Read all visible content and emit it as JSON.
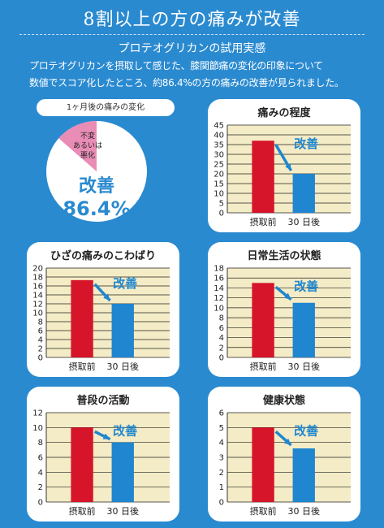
{
  "header": {
    "title": "8割以上の方の痛みが改善",
    "subtitle": "プロテオグリカンの試用実感",
    "description_lines": [
      "プロテオグリカンを摂取して感じた、膝関節痛の変化の印象について",
      "数値でスコア化したところ、約86.4%の方の痛みの改善が見られました。"
    ]
  },
  "colors": {
    "background": "#2a8ad0",
    "before_bar": "#d6142a",
    "after_bar": "#1f86cf",
    "pie_improved": "#ffffff",
    "pie_unchanged": "#e98cb6",
    "plot_bg": "#f4ecc6",
    "arrow": "#1f86cf"
  },
  "pie": {
    "label": "1ヶ月後の痛みの変化",
    "small_label_lines": [
      "不変",
      "あるいは",
      "悪化"
    ],
    "big_label": "改善",
    "big_value": "86.4%"
  },
  "chart_data": [
    {
      "type": "pie",
      "title": "1ヶ月後の痛みの変化",
      "labels": [
        "改善",
        "不変あるいは悪化"
      ],
      "values": [
        86.4,
        13.6
      ]
    },
    {
      "type": "bar",
      "title": "痛みの程度",
      "categories": [
        "摂取前",
        "30 日後"
      ],
      "values": [
        37,
        20
      ],
      "ylim": [
        0,
        45
      ],
      "ticks": [
        0,
        5,
        10,
        15,
        20,
        25,
        30,
        35,
        40,
        45
      ],
      "annotation": "改善",
      "grid": true
    },
    {
      "type": "bar",
      "title": "ひざの痛みのこわばり",
      "categories": [
        "摂取前",
        "30 日後"
      ],
      "values": [
        17.3,
        12
      ],
      "ylim": [
        0,
        20
      ],
      "ticks": [
        0,
        2,
        4,
        6,
        8,
        10,
        12,
        14,
        16,
        18,
        20
      ],
      "annotation": "改善",
      "grid": true
    },
    {
      "type": "bar",
      "title": "日常生活の状態",
      "categories": [
        "摂取前",
        "30 日後"
      ],
      "values": [
        15,
        11
      ],
      "ylim": [
        0,
        18
      ],
      "ticks": [
        0,
        2,
        4,
        6,
        8,
        10,
        12,
        14,
        16,
        18
      ],
      "annotation": "改善",
      "grid": true
    },
    {
      "type": "bar",
      "title": "普段の活動",
      "categories": [
        "摂取前",
        "30 日後"
      ],
      "values": [
        10,
        8
      ],
      "ylim": [
        0,
        12
      ],
      "ticks": [
        0,
        2,
        4,
        6,
        8,
        10,
        12
      ],
      "annotation": "改善",
      "grid": true
    },
    {
      "type": "bar",
      "title": "健康状態",
      "categories": [
        "摂取前",
        "30 日後"
      ],
      "values": [
        5,
        3.6
      ],
      "ylim": [
        0,
        6
      ],
      "ticks": [
        0,
        1,
        2,
        3,
        4,
        5,
        6
      ],
      "annotation": "改善",
      "grid": true
    }
  ]
}
